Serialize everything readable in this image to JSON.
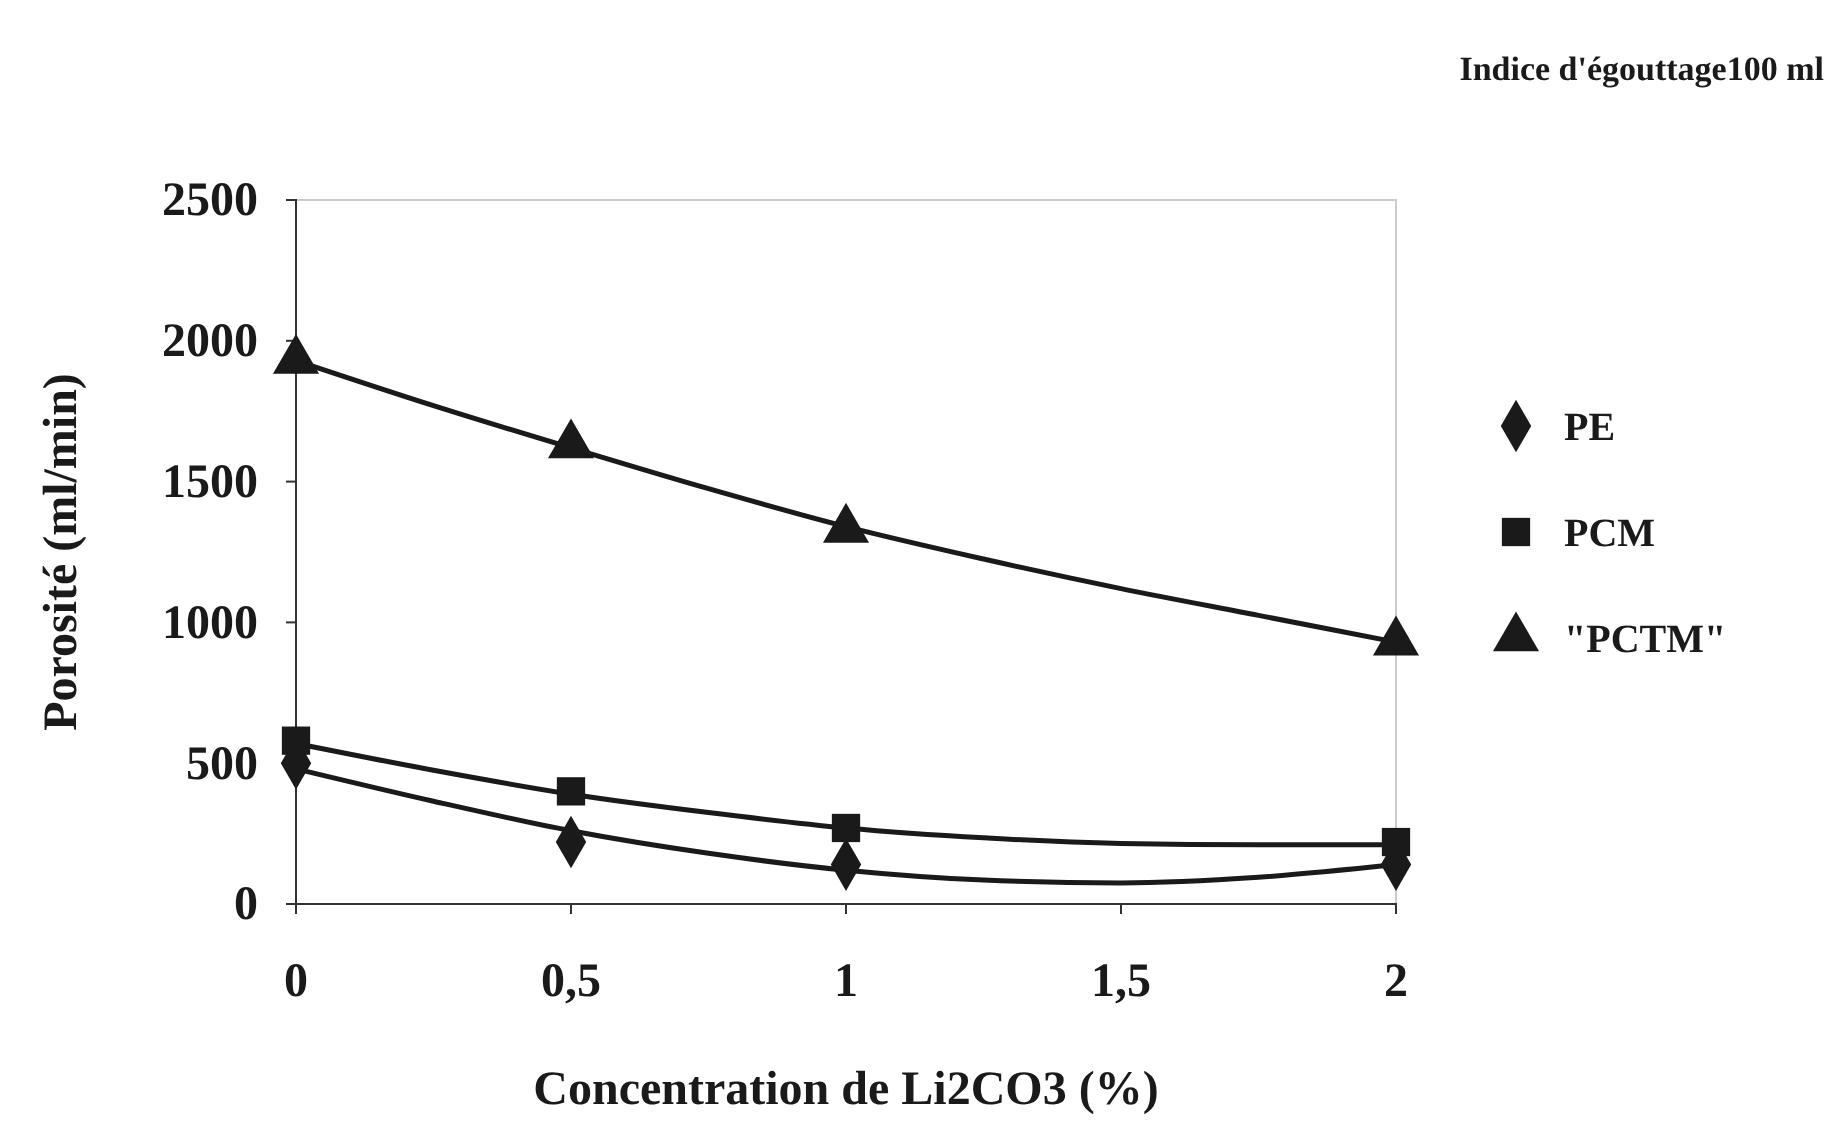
{
  "chart_data": {
    "type": "scatter",
    "title": "Indice d'égouttage100 ml",
    "xlabel": "Concentration de Li2CO3 (%)",
    "ylabel": "Porosité (ml/min)",
    "x": [
      0,
      0.5,
      1,
      2
    ],
    "xlim": [
      0,
      2
    ],
    "xticks": [
      0,
      {
        "value": 0.5,
        "label": "0,5"
      },
      1,
      {
        "value": 1.5,
        "label": "1,5"
      },
      2
    ],
    "ylim": [
      0,
      2500
    ],
    "yticks": [
      0,
      500,
      1000,
      1500,
      2000,
      2500
    ],
    "grid": false,
    "legend": "right",
    "series": [
      {
        "name": "PE",
        "color": "#1a1a1a",
        "marker": "diamond",
        "values": [
          500,
          220,
          140,
          140
        ]
      },
      {
        "name": "PCM",
        "color": "#1a1a1a",
        "marker": "square",
        "values": [
          580,
          400,
          270,
          220
        ]
      },
      {
        "name": "\"PCTM\"",
        "color": "#1a1a1a",
        "marker": "triangle",
        "values": [
          1930,
          1630,
          1330,
          930
        ]
      },
      {
        "type": "line",
        "color": "#1a1a1a",
        "marker": "none",
        "line_style": "solid",
        "x": [
          0,
          0.25,
          0.5,
          0.75,
          1,
          1.25,
          1.5,
          1.75,
          2
        ],
        "values": [
          480,
          365,
          260,
          180,
          120,
          85,
          75,
          95,
          140
        ]
      },
      {
        "type": "line",
        "color": "#1a1a1a",
        "marker": "none",
        "line_style": "solid",
        "x": [
          0,
          0.25,
          0.5,
          0.75,
          1,
          1.25,
          1.5,
          1.75,
          2
        ],
        "values": [
          570,
          475,
          390,
          325,
          270,
          235,
          215,
          210,
          210
        ]
      },
      {
        "type": "line",
        "color": "#1a1a1a",
        "marker": "none",
        "line_style": "solid",
        "x": [
          0,
          0.25,
          0.5,
          0.75,
          1,
          1.25,
          1.5,
          1.75,
          2
        ],
        "values": [
          1930,
          1770,
          1620,
          1475,
          1340,
          1225,
          1120,
          1025,
          930
        ]
      }
    ]
  }
}
